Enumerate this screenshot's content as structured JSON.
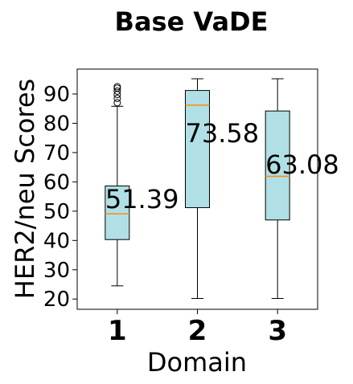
{
  "chart_data": {
    "type": "box",
    "title": "Base VaDE",
    "xlabel": "Domain",
    "ylabel": "HER2/neu Scores",
    "ylim": [
      16.5,
      98.5
    ],
    "yticks": [
      20,
      30,
      40,
      50,
      60,
      70,
      80,
      90
    ],
    "grid": false,
    "box_color": "#b0e0e6",
    "median_color": "#ff8c00",
    "boxes": [
      {
        "category": "1",
        "whisker_low": 24.5,
        "q1": 40.3,
        "median": 49.1,
        "q3": 58.6,
        "whisker_high": 85.8,
        "outliers": [
          87.0,
          88.5,
          89.8,
          91.0,
          92.0,
          92.5
        ],
        "label": "51.39"
      },
      {
        "category": "2",
        "whisker_low": 20.2,
        "q1": 51.2,
        "median": 86.2,
        "q3": 91.2,
        "whisker_high": 95.2,
        "outliers": [],
        "label": "73.58"
      },
      {
        "category": "3",
        "whisker_low": 20.2,
        "q1": 47.0,
        "median": 61.9,
        "q3": 84.2,
        "whisker_high": 95.2,
        "outliers": [],
        "label": "63.08"
      }
    ]
  }
}
